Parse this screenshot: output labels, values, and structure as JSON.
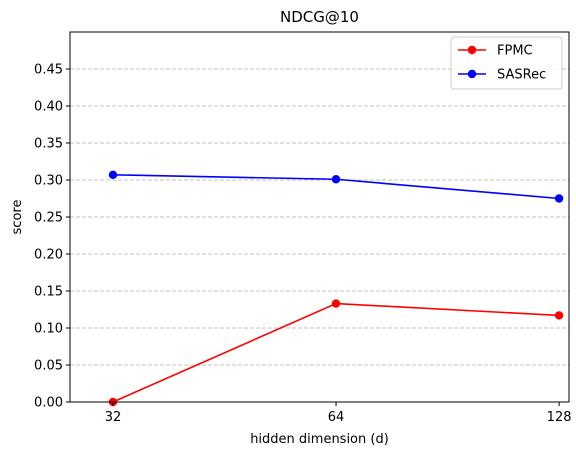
{
  "chart_data": {
    "type": "line",
    "title": "NDCG@10",
    "xlabel": "hidden dimension (d)",
    "ylabel": "score",
    "x": [
      32,
      64,
      128
    ],
    "x_ticks": [
      "32",
      "64",
      "128"
    ],
    "xlim": [
      28,
      132
    ],
    "ylim": [
      0,
      0.5
    ],
    "y_ticks": [
      "0.00",
      "0.05",
      "0.10",
      "0.15",
      "0.20",
      "0.25",
      "0.30",
      "0.35",
      "0.40",
      "0.45"
    ],
    "grid": "y-dashed",
    "legend_position": "top-right",
    "series": [
      {
        "name": "FPMC",
        "color": "#ff0000",
        "values": [
          0.0,
          0.133,
          0.117
        ]
      },
      {
        "name": "SASRec",
        "color": "#0000ff",
        "values": [
          0.307,
          0.301,
          0.275
        ]
      }
    ]
  }
}
